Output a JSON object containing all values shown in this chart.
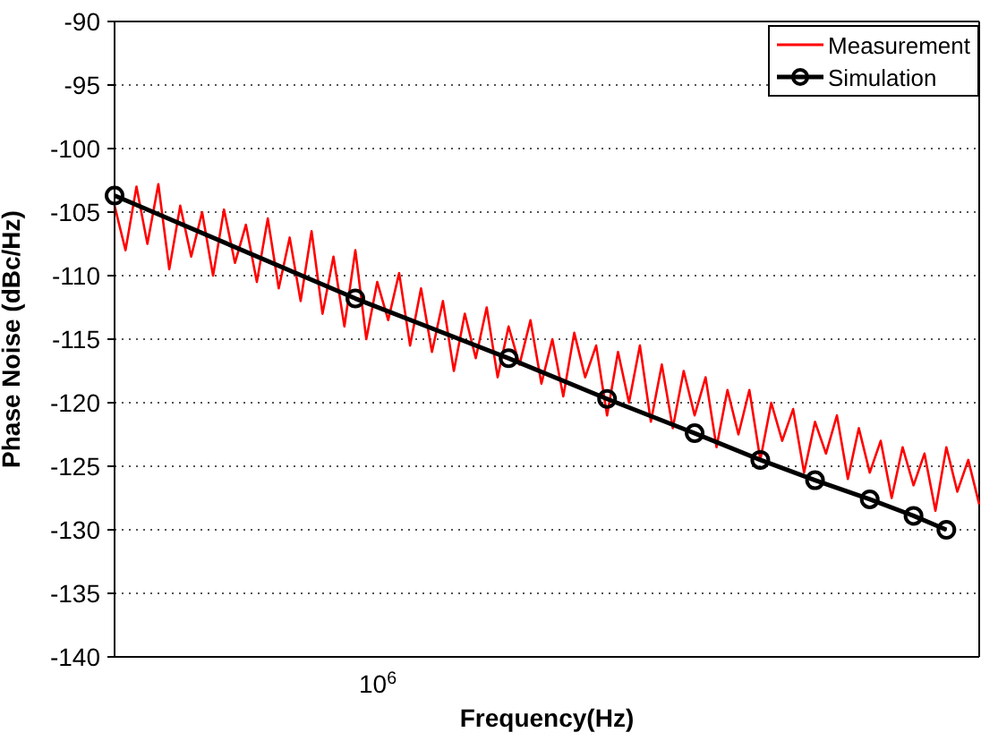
{
  "chart_data": {
    "type": "line",
    "xlabel": "Frequency(Hz)",
    "ylabel": "Phase Noise (dBc/Hz)",
    "grid": "y",
    "legend": "top right",
    "categories": [
      null,
      null,
      null,
      null,
      null,
      null,
      null,
      null,
      null,
      null,
      null,
      null,
      null,
      null,
      null,
      null,
      null,
      null,
      null,
      null,
      null,
      null,
      null,
      null,
      null,
      null,
      null,
      null,
      null,
      null,
      null,
      null,
      null,
      null,
      null,
      null,
      null,
      null,
      null,
      null,
      null,
      null,
      null,
      null,
      null,
      null,
      null,
      null,
      null,
      null,
      null,
      null,
      null,
      null,
      null,
      null,
      null,
      null,
      null,
      null,
      null,
      null,
      null,
      null,
      null,
      null,
      null,
      null,
      null,
      null,
      null,
      null,
      null,
      null,
      null,
      null,
      null,
      null,
      null,
      null
    ],
    "annotations": [
      "10$^{6}$"
    ],
    "ylim": [
      -140,
      -90
    ],
    "yticks": [
      -140,
      -135,
      -130,
      -125,
      -120,
      -115,
      -110,
      -105,
      -100,
      -95,
      -90
    ],
    "series": [
      {
        "name": "Measurement",
        "color": "#ff0000",
        "marker": "none",
        "line_style": "solid",
        "values": [
          -104.5,
          -108,
          -103,
          -107.5,
          -102.8,
          -109.5,
          -104.5,
          -108.5,
          -105,
          -110,
          -104.8,
          -109,
          -106,
          -110.5,
          -105.5,
          -111,
          -107,
          -112,
          -106.5,
          -113,
          -108.5,
          -114,
          -108,
          -115,
          -110.5,
          -113.5,
          -109.8,
          -115.5,
          -111,
          -116,
          -112,
          -117.5,
          -113,
          -116.5,
          -112.5,
          -118,
          -114,
          -117,
          -113.5,
          -118.5,
          -115,
          -119.5,
          -114.5,
          -118,
          -115.5,
          -121,
          -116,
          -120,
          -115.5,
          -121.5,
          -117,
          -122,
          -117.5,
          -121,
          -118,
          -123.5,
          -119,
          -122.5,
          -119,
          -124.5,
          -120,
          -123,
          -120.5,
          -125.5,
          -121.5,
          -124,
          -121,
          -126,
          -122,
          -125.5,
          -123,
          -127.5,
          -123.5,
          -126.5,
          -124,
          -128.5,
          -123.5,
          -127,
          -124.5,
          -128
        ]
      },
      {
        "name": "Simulation",
        "color": "#000000",
        "marker": "circle",
        "line_style": "solid",
        "values": [
          -103.7,
          null,
          null,
          null,
          null,
          null,
          null,
          null,
          null,
          null,
          null,
          null,
          null,
          null,
          null,
          null,
          null,
          null,
          null,
          null,
          null,
          null,
          -111.8,
          null,
          null,
          null,
          null,
          null,
          null,
          null,
          null,
          null,
          null,
          null,
          null,
          null,
          -116.5,
          null,
          null,
          null,
          null,
          null,
          null,
          null,
          null,
          -119.7,
          null,
          null,
          null,
          null,
          null,
          null,
          null,
          -122.4,
          null,
          null,
          null,
          null,
          null,
          -124.5,
          null,
          null,
          null,
          null,
          -126.1,
          null,
          null,
          null,
          null,
          -127.6,
          null,
          null,
          null,
          -128.9,
          null,
          null,
          -130.0,
          null,
          null,
          null
        ]
      }
    ]
  }
}
